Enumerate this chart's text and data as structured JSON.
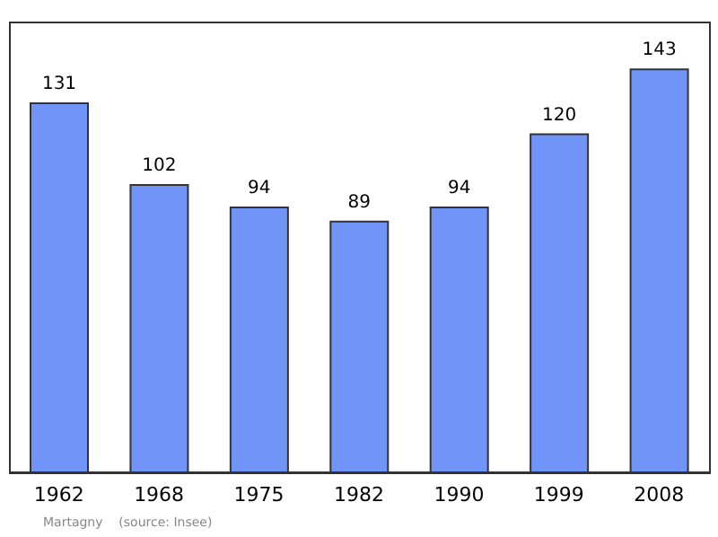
{
  "chart_data": {
    "type": "bar",
    "categories": [
      "1962",
      "1968",
      "1975",
      "1982",
      "1990",
      "1999",
      "2008"
    ],
    "values": [
      131,
      102,
      94,
      89,
      94,
      120,
      143
    ],
    "color": "#7094f8",
    "ylim": [
      0,
      160
    ],
    "data_labels": true,
    "tick_labels": "x",
    "grid": false,
    "legend": false,
    "annotations": [
      "Martagny    (source: Insee)"
    ]
  }
}
